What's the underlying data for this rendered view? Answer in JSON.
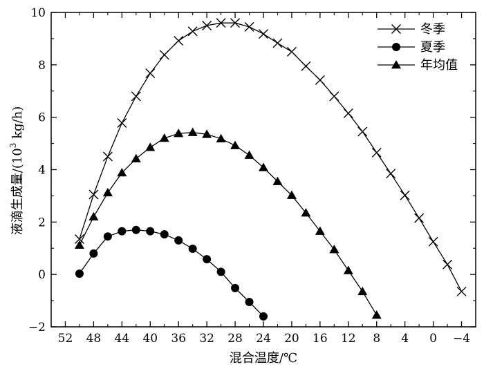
{
  "chart_data": {
    "type": "line",
    "title": "",
    "xlabel": "混合温度/℃",
    "ylabel_main": "液滴生成量/(10",
    "ylabel_sup": "3",
    "ylabel_tail": " kg/h)",
    "xlim": [
      54,
      -6
    ],
    "ylim": [
      -2,
      10
    ],
    "x_reversed": true,
    "x_ticks": [
      52,
      48,
      44,
      40,
      36,
      32,
      28,
      24,
      20,
      16,
      12,
      8,
      4,
      0,
      -4
    ],
    "x_tick_labels": [
      "52",
      "48",
      "44",
      "40",
      "36",
      "32",
      "28",
      "24",
      "20",
      "16",
      "12",
      "8",
      "4",
      "0",
      "−4"
    ],
    "y_ticks": [
      -2,
      0,
      2,
      4,
      6,
      8,
      10
    ],
    "y_tick_labels": [
      "−2",
      "0",
      "2",
      "4",
      "6",
      "8",
      "10"
    ],
    "grid": false,
    "legend_position": "top-right",
    "series": [
      {
        "name": "冬季",
        "marker": "x",
        "x": [
          50,
          48,
          46,
          44,
          42,
          40,
          38,
          36,
          34,
          32,
          30,
          28,
          26,
          24,
          22,
          20,
          18,
          16,
          14,
          12,
          10,
          8,
          6,
          4,
          2,
          0,
          -2,
          -4
        ],
        "y": [
          1.35,
          3.05,
          4.5,
          5.78,
          6.8,
          7.68,
          8.38,
          8.92,
          9.28,
          9.5,
          9.6,
          9.6,
          9.45,
          9.18,
          8.83,
          8.5,
          7.95,
          7.42,
          6.8,
          6.15,
          5.45,
          4.65,
          3.85,
          3.02,
          2.15,
          1.25,
          0.38,
          -0.65
        ]
      },
      {
        "name": "夏季",
        "marker": "circle",
        "x": [
          50,
          48,
          46,
          44,
          42,
          40,
          38,
          36,
          34,
          32,
          30,
          28,
          26,
          24
        ],
        "y": [
          0.03,
          0.8,
          1.45,
          1.65,
          1.7,
          1.65,
          1.53,
          1.3,
          0.98,
          0.58,
          0.1,
          -0.52,
          -1.05,
          -1.6
        ]
      },
      {
        "name": "年均值",
        "marker": "triangle",
        "x": [
          50,
          48,
          46,
          44,
          42,
          40,
          38,
          36,
          34,
          32,
          30,
          28,
          26,
          24,
          22,
          20,
          18,
          16,
          14,
          12,
          10,
          8
        ],
        "y": [
          1.12,
          2.2,
          3.12,
          3.88,
          4.42,
          4.85,
          5.2,
          5.38,
          5.42,
          5.35,
          5.18,
          4.92,
          4.55,
          4.08,
          3.55,
          3.02,
          2.35,
          1.65,
          0.95,
          0.15,
          -0.65,
          -1.55
        ]
      }
    ]
  }
}
